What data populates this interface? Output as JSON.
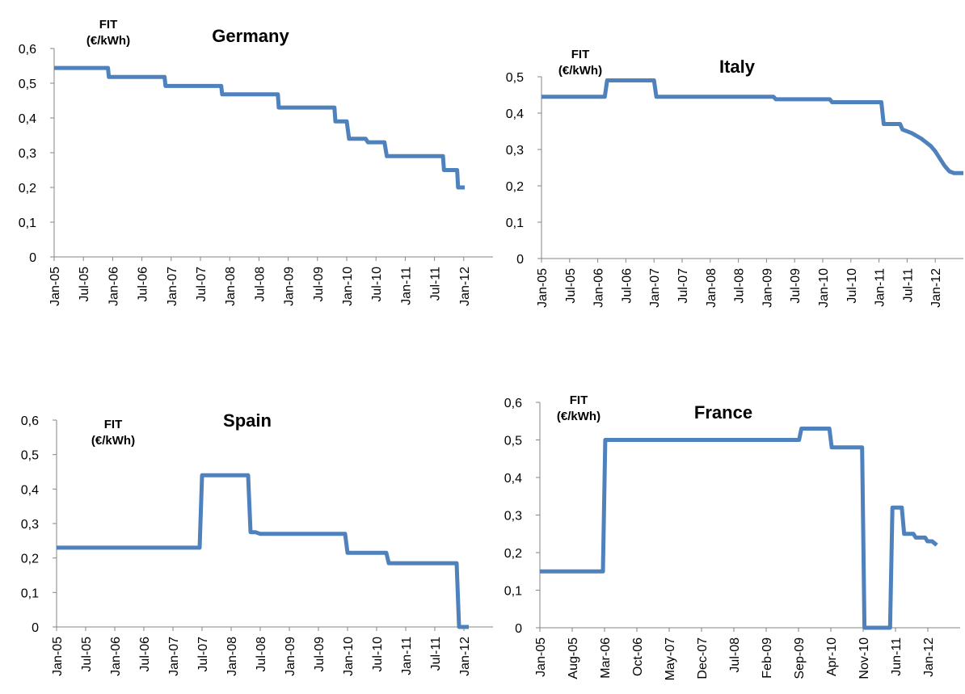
{
  "chart_data": [
    {
      "type": "line",
      "title": "Germany",
      "ylabel": "FIT\n(€/kWh)",
      "ylim": [
        0,
        0.6
      ],
      "yticks": [
        "0",
        "0,1",
        "0,2",
        "0,3",
        "0,4",
        "0,5",
        "0,6"
      ],
      "xticks": [
        "Jan-05",
        "Jul-05",
        "Jan-06",
        "Jul-06",
        "Jan-07",
        "Jul-07",
        "Jan-08",
        "Jul-08",
        "Jan-09",
        "Jul-09",
        "Jan-10",
        "Jul-10",
        "Jan-11",
        "Jul-11",
        "Jan-12"
      ],
      "x": [
        0,
        11.4,
        11.6,
        23.4,
        23.6,
        35.4,
        35.6,
        47.4,
        47.6,
        59.4,
        59.6,
        62,
        62.5,
        66,
        66.5,
        70,
        70.5,
        82.4,
        82.6,
        85.4,
        85.6,
        87
      ],
      "series": [
        {
          "color": "#4f81bd",
          "values": [
            0.544,
            0.544,
            0.518,
            0.518,
            0.492,
            0.492,
            0.468,
            0.468,
            0.43,
            0.43,
            0.39,
            0.39,
            0.34,
            0.34,
            0.33,
            0.33,
            0.29,
            0.29,
            0.25,
            0.25,
            0.2,
            0.2
          ]
        }
      ]
    },
    {
      "type": "line",
      "title": "Italy",
      "ylabel": "FIT\n(€/kWh)",
      "ylim": [
        0,
        0.5
      ],
      "yticks": [
        "0",
        "0,1",
        "0,2",
        "0,3",
        "0,4",
        "0,5"
      ],
      "xticks": [
        "Jan-05",
        "Jul-05",
        "Jan-06",
        "Jul-06",
        "Jan-07",
        "Jul-07",
        "Jan-08",
        "Jul-08",
        "Jan-09",
        "Jul-09",
        "Jan-10",
        "Jul-10",
        "Jan-11",
        "Jul-11",
        "Jan-12"
      ],
      "x": [
        0,
        13.5,
        14,
        24,
        24.5,
        49.5,
        50,
        61.5,
        62,
        72.5,
        73,
        76.5,
        77,
        79,
        81,
        83,
        84,
        85,
        86,
        87,
        88,
        89,
        90
      ],
      "series": [
        {
          "color": "#4f81bd",
          "values": [
            0.445,
            0.445,
            0.49,
            0.49,
            0.445,
            0.445,
            0.438,
            0.438,
            0.43,
            0.43,
            0.37,
            0.37,
            0.355,
            0.345,
            0.33,
            0.31,
            0.295,
            0.275,
            0.255,
            0.24,
            0.235,
            0.235,
            0.235
          ]
        }
      ]
    },
    {
      "type": "line",
      "title": "Spain",
      "ylabel": "FIT\n(€/kWh)",
      "ylim": [
        0,
        0.6
      ],
      "yticks": [
        "0",
        "0,1",
        "0,2",
        "0,3",
        "0,4",
        "0,5",
        "0,6"
      ],
      "xticks": [
        "Jan-05",
        "Jul-05",
        "Jan-06",
        "Jul-06",
        "Jan-07",
        "Jul-07",
        "Jan-08",
        "Jul-08",
        "Jan-09",
        "Jul-09",
        "Jan-10",
        "Jul-10",
        "Jan-11",
        "Jul-11",
        "Jan-12"
      ],
      "x": [
        0,
        29.5,
        30,
        39.5,
        40,
        41,
        42,
        59.5,
        60,
        68,
        68.5,
        82.5,
        83,
        85
      ],
      "series": [
        {
          "color": "#4f81bd",
          "values": [
            0.23,
            0.23,
            0.44,
            0.44,
            0.275,
            0.275,
            0.27,
            0.27,
            0.215,
            0.215,
            0.185,
            0.185,
            0,
            0
          ]
        }
      ]
    },
    {
      "type": "line",
      "title": "France",
      "ylabel": "FIT\n(€/kWh)",
      "ylim": [
        0,
        0.6
      ],
      "yticks": [
        "0",
        "0,1",
        "0,2",
        "0,3",
        "0,4",
        "0,5",
        "0,6"
      ],
      "xticks": [
        "Jan-05",
        "Aug-05",
        "Mar-06",
        "Oct-06",
        "May-07",
        "Dec-07",
        "Jul-08",
        "Feb-09",
        "Sep-09",
        "Apr-10",
        "Nov-10",
        "Jun-11",
        "Jan-12"
      ],
      "x": [
        0,
        13.5,
        14,
        55.5,
        56,
        62,
        62.5,
        67.5,
        68,
        69,
        69.5,
        70.5,
        71,
        75,
        75.5,
        77.5,
        78,
        80,
        80.5,
        82.5,
        83,
        84,
        85
      ],
      "series": [
        {
          "color": "#4f81bd",
          "values": [
            0.15,
            0.15,
            0.5,
            0.5,
            0.53,
            0.53,
            0.48,
            0.48,
            0.48,
            0.48,
            0,
            0,
            0,
            0,
            0.32,
            0.32,
            0.25,
            0.25,
            0.24,
            0.24,
            0.23,
            0.23,
            0.22
          ]
        }
      ]
    }
  ]
}
